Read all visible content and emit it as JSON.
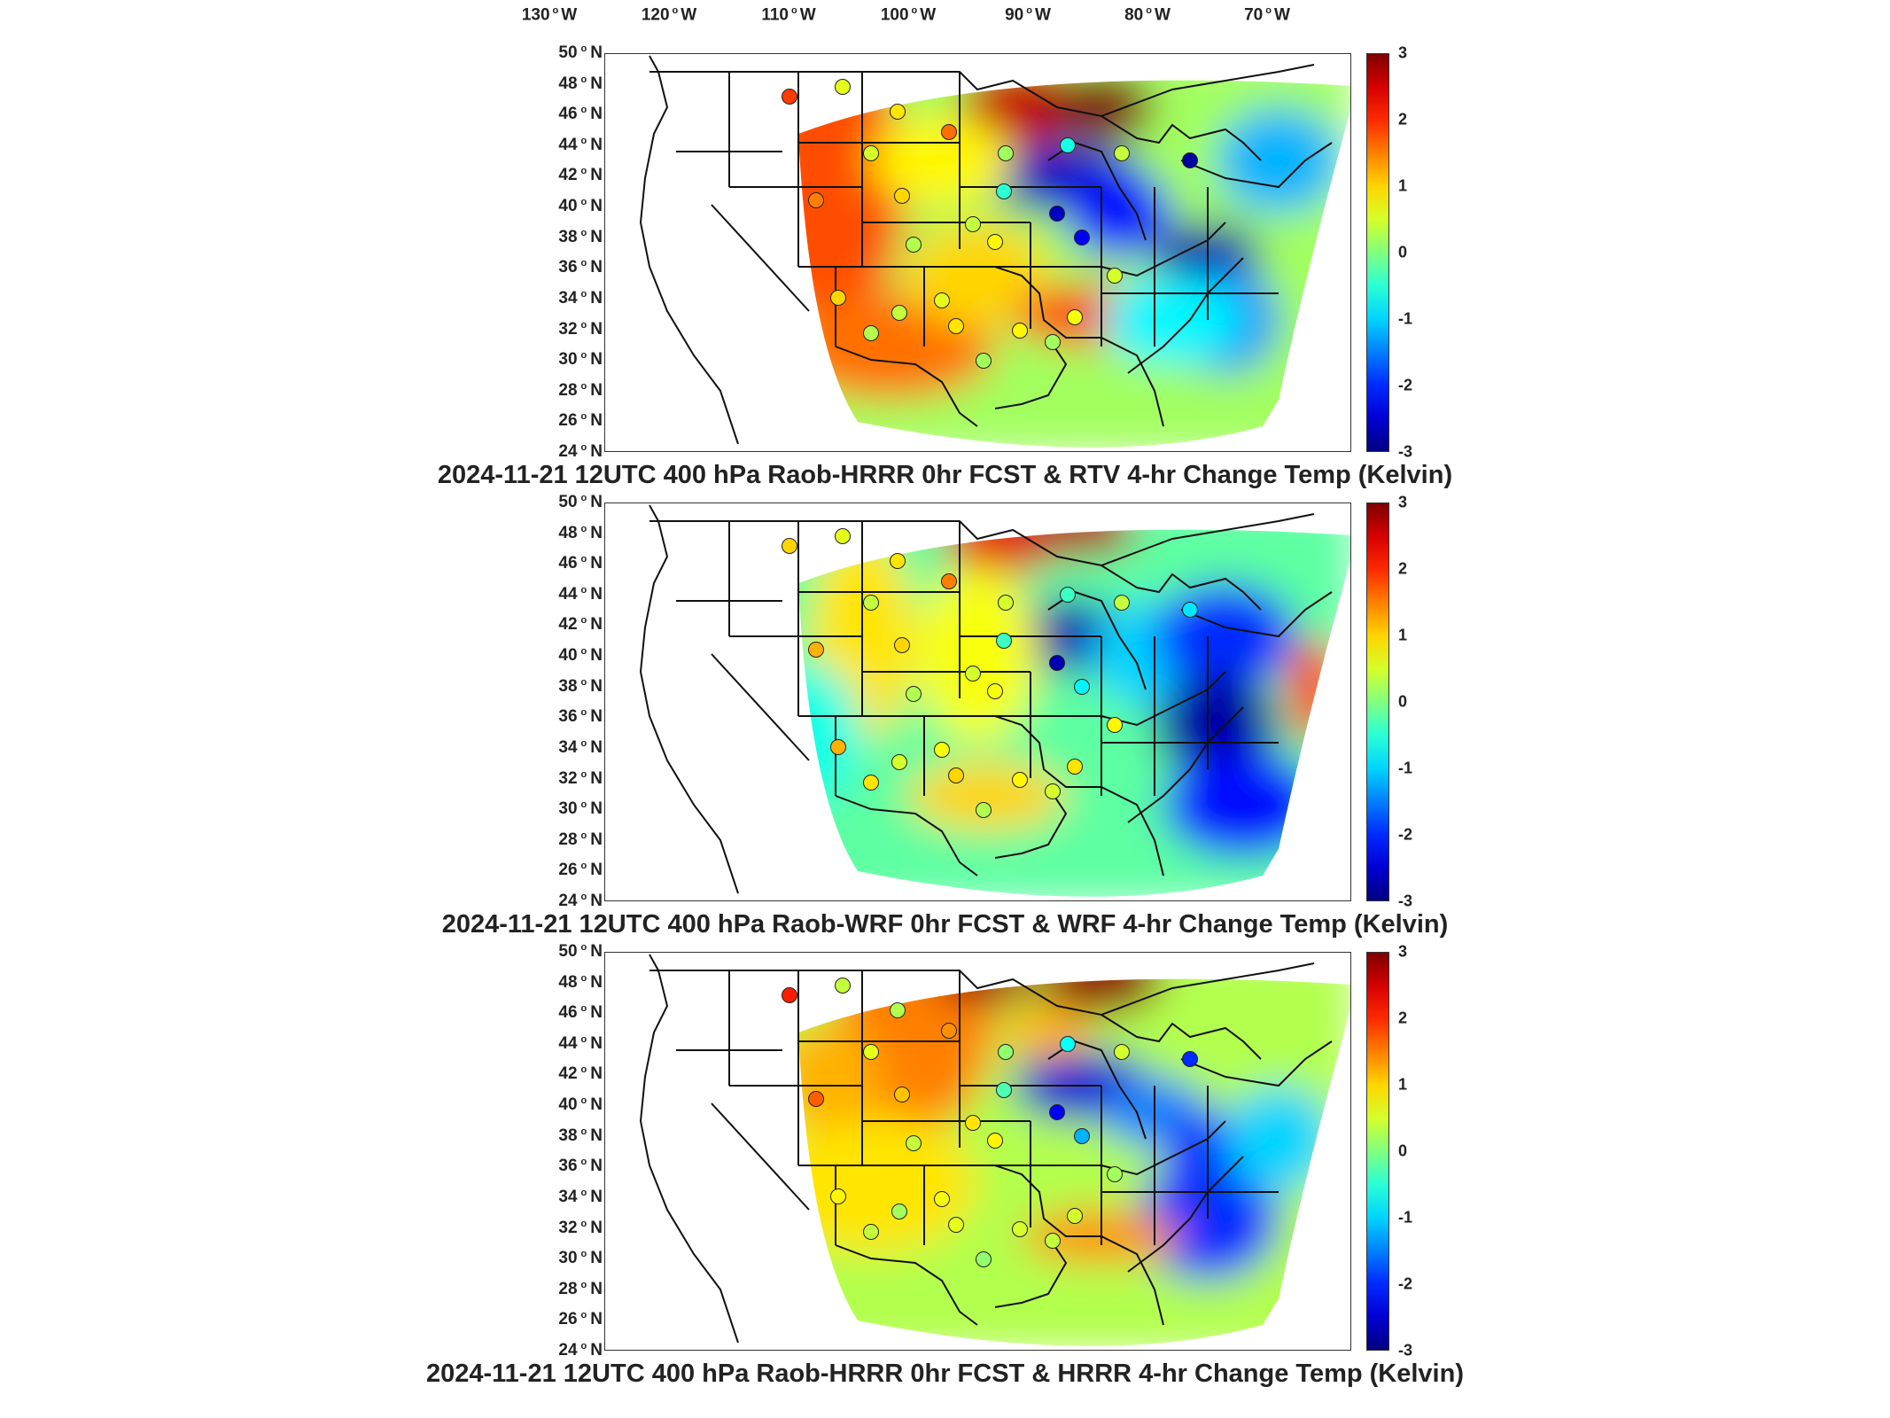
{
  "lon_labels": [
    "130",
    "120",
    "110",
    "100",
    "90",
    "80",
    "70"
  ],
  "lon_suffix": "W",
  "lat_labels": [
    "50",
    "48",
    "46",
    "44",
    "42",
    "40",
    "38",
    "36",
    "34",
    "32",
    "30",
    "28",
    "26",
    "24"
  ],
  "lat_suffix": "N",
  "colorbar": {
    "ticks": [
      "3",
      "2",
      "1",
      "0",
      "-1",
      "-2",
      "-3"
    ],
    "min": -3,
    "max": 3,
    "colormap": "jet"
  },
  "colors": {
    "hot": "#b40000",
    "warm": "#ff6a00",
    "neutral": "#5fe0b0",
    "cold": "#0a1fd0",
    "deep_cold": "#05008f",
    "border": "#111111"
  },
  "panels": [
    {
      "title": "2024-11-21 12UTC 400 hPa Raob-HRRR 0hr FCST & RTV 4-hr Change Temp (Kelvin)",
      "stations": [
        1.9,
        0.6,
        0.9,
        0.5,
        1.6,
        1.0,
        0.3,
        1.5,
        0.4,
        -2.6,
        0.8,
        -2.3,
        -0.5,
        0.2,
        -0.6,
        0.4,
        -2.8,
        0.5,
        0.7,
        0.2,
        0.8,
        0.9,
        0.4,
        0.3,
        0.6,
        1.0,
        0.2
      ]
    },
    {
      "title": "2024-11-21 12UTC 400 hPa Raob-WRF 0hr FCST & WRF 4-hr Change Temp (Kelvin)",
      "stations": [
        1.0,
        0.6,
        0.9,
        0.4,
        1.5,
        1.0,
        0.3,
        1.2,
        0.5,
        -2.7,
        0.7,
        -0.8,
        -0.4,
        0.5,
        -0.4,
        0.4,
        -0.9,
        0.8,
        0.9,
        0.5,
        0.8,
        1.0,
        0.5,
        0.9,
        0.7,
        1.2,
        0.3
      ]
    },
    {
      "title": "2024-11-21 12UTC 400 hPa Raob-HRRR 0hr FCST & HRRR 4-hr Change Temp (Kelvin)",
      "stations": [
        2.1,
        0.4,
        0.3,
        0.6,
        1.4,
        1.1,
        0.4,
        1.7,
        0.9,
        -2.3,
        0.8,
        -1.2,
        -0.3,
        0.1,
        -0.7,
        0.5,
        -2.0,
        0.2,
        0.5,
        0.4,
        0.5,
        0.6,
        0.2,
        0.4,
        0.7,
        0.8,
        0.1
      ]
    }
  ]
}
